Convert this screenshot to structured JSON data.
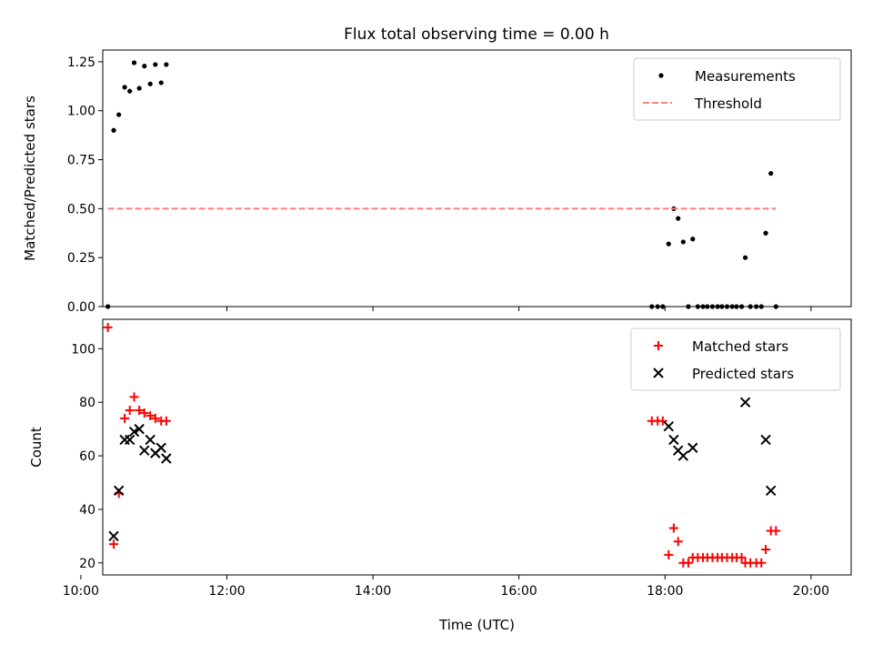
{
  "title": "Flux total observing time = 0.00 h",
  "chart_data": [
    {
      "type": "scatter",
      "ylabel": "Matched/Predicted stars",
      "xlim": [
        10.3,
        20.55
      ],
      "ylim": [
        0,
        1.31
      ],
      "yticks": [
        "0.00",
        "0.25",
        "0.50",
        "0.75",
        "1.00",
        "1.25"
      ],
      "legend": "top-right",
      "series": [
        {
          "name": "Measurements",
          "kind": "dot",
          "color": "#000000",
          "points": [
            [
              10.37,
              0.0
            ],
            [
              10.45,
              0.9
            ],
            [
              10.52,
              0.98
            ],
            [
              10.6,
              1.12
            ],
            [
              10.67,
              1.1
            ],
            [
              10.73,
              1.245
            ],
            [
              10.8,
              1.115
            ],
            [
              10.87,
              1.228
            ],
            [
              10.95,
              1.137
            ],
            [
              11.02,
              1.236
            ],
            [
              11.1,
              1.143
            ],
            [
              11.17,
              1.236
            ],
            [
              17.82,
              0.0
            ],
            [
              17.9,
              0.0
            ],
            [
              17.97,
              0.0
            ],
            [
              18.05,
              0.32
            ],
            [
              18.12,
              0.5
            ],
            [
              18.18,
              0.45
            ],
            [
              18.25,
              0.33
            ],
            [
              18.32,
              0.0
            ],
            [
              18.38,
              0.345
            ],
            [
              18.45,
              0.0
            ],
            [
              18.52,
              0.0
            ],
            [
              18.58,
              0.0
            ],
            [
              18.65,
              0.0
            ],
            [
              18.72,
              0.0
            ],
            [
              18.78,
              0.0
            ],
            [
              18.85,
              0.0
            ],
            [
              18.92,
              0.0
            ],
            [
              18.98,
              0.0
            ],
            [
              19.05,
              0.0
            ],
            [
              19.1,
              0.25
            ],
            [
              19.17,
              0.0
            ],
            [
              19.25,
              0.0
            ],
            [
              19.32,
              0.0
            ],
            [
              19.38,
              0.375
            ],
            [
              19.45,
              0.68
            ],
            [
              19.52,
              0.0
            ]
          ]
        },
        {
          "name": "Threshold",
          "kind": "dashed-line",
          "color": "#ff7f7f",
          "points": [
            [
              10.37,
              0.5
            ],
            [
              19.52,
              0.5
            ]
          ]
        }
      ]
    },
    {
      "type": "scatter",
      "xlabel": "Time (UTC)",
      "ylabel": "Count",
      "xlim": [
        10.3,
        20.55
      ],
      "ylim": [
        15.5,
        111
      ],
      "yticks": [
        "20",
        "40",
        "60",
        "80",
        "100"
      ],
      "xticks": [
        "10:00",
        "12:00",
        "14:00",
        "16:00",
        "18:00",
        "20:00"
      ],
      "legend": "top-right",
      "series": [
        {
          "name": "Matched stars",
          "kind": "plus",
          "color": "#ff0000",
          "points": [
            [
              10.37,
              108
            ],
            [
              10.45,
              27
            ],
            [
              10.52,
              46
            ],
            [
              10.6,
              74
            ],
            [
              10.67,
              77
            ],
            [
              10.73,
              82
            ],
            [
              10.8,
              77
            ],
            [
              10.87,
              76
            ],
            [
              10.95,
              75
            ],
            [
              11.02,
              74
            ],
            [
              11.1,
              73
            ],
            [
              11.17,
              73
            ],
            [
              17.82,
              73
            ],
            [
              17.9,
              73
            ],
            [
              17.97,
              73
            ],
            [
              18.05,
              23
            ],
            [
              18.12,
              33
            ],
            [
              18.18,
              28
            ],
            [
              18.25,
              20
            ],
            [
              18.32,
              20
            ],
            [
              18.38,
              22
            ],
            [
              18.45,
              22
            ],
            [
              18.52,
              22
            ],
            [
              18.58,
              22
            ],
            [
              18.65,
              22
            ],
            [
              18.72,
              22
            ],
            [
              18.78,
              22
            ],
            [
              18.85,
              22
            ],
            [
              18.92,
              22
            ],
            [
              18.98,
              22
            ],
            [
              19.05,
              22
            ],
            [
              19.1,
              20
            ],
            [
              19.17,
              20
            ],
            [
              19.25,
              20
            ],
            [
              19.32,
              20
            ],
            [
              19.38,
              25
            ],
            [
              19.45,
              32
            ],
            [
              19.52,
              32
            ]
          ]
        },
        {
          "name": "Predicted stars",
          "kind": "x",
          "color": "#000000",
          "points": [
            [
              10.45,
              30
            ],
            [
              10.52,
              47
            ],
            [
              10.6,
              66
            ],
            [
              10.67,
              66
            ],
            [
              10.73,
              69
            ],
            [
              10.8,
              70
            ],
            [
              10.87,
              62
            ],
            [
              10.95,
              66
            ],
            [
              11.02,
              61
            ],
            [
              11.1,
              63
            ],
            [
              11.17,
              59
            ],
            [
              18.05,
              71
            ],
            [
              18.12,
              66
            ],
            [
              18.18,
              62
            ],
            [
              18.25,
              60
            ],
            [
              18.38,
              63
            ],
            [
              19.1,
              80
            ],
            [
              19.38,
              66
            ],
            [
              19.45,
              47
            ]
          ]
        }
      ]
    }
  ]
}
